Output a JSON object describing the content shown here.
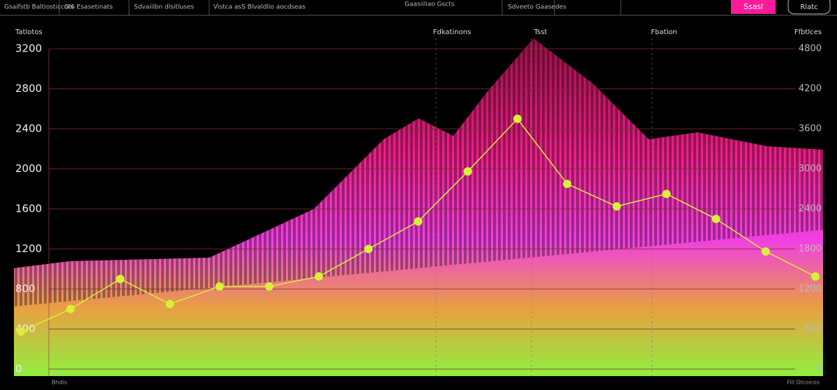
{
  "header": {
    "items": [
      "Gsaifstb Baltiosticcots",
      "Gl6 Esasetinats",
      "Sdvaiilbn dlsitluses",
      "Vistca asS Blvaldlio aocdseas",
      "Gaasiiliao Gscts",
      "Sdveeto Gaasedes"
    ],
    "primary_button": "Ssasl",
    "secondary_button": "Rlatc"
  },
  "chart_data": {
    "type": "line",
    "column_labels": [
      "Tatlotos",
      "Fdkatinons",
      "Tsst",
      "Fbatlon",
      "Ffbtlces"
    ],
    "footer_left": "Bhdis",
    "footer_right": "Fill Dlcoicos",
    "categories": [
      null,
      null,
      null,
      null,
      null,
      null,
      null,
      null,
      null,
      null,
      null,
      null,
      null,
      null,
      null,
      null,
      null
    ],
    "series": [
      {
        "color": "#d8f03a",
        "values": [
          375,
          600,
          900,
          650,
          825,
          825,
          925,
          1200,
          1475,
          1975,
          2500,
          1850,
          1625,
          1750,
          1500,
          1175,
          925
        ]
      }
    ],
    "ylim": [
      0,
      3200
    ],
    "yticks": [
      0,
      400,
      800,
      1200,
      1600,
      2000,
      2400,
      2800,
      3200
    ],
    "y2lim": [
      0,
      4800
    ],
    "y2ticks": [
      0,
      600,
      1200,
      1800,
      2400,
      3000,
      3600,
      4200,
      4800
    ],
    "grid": true
  }
}
